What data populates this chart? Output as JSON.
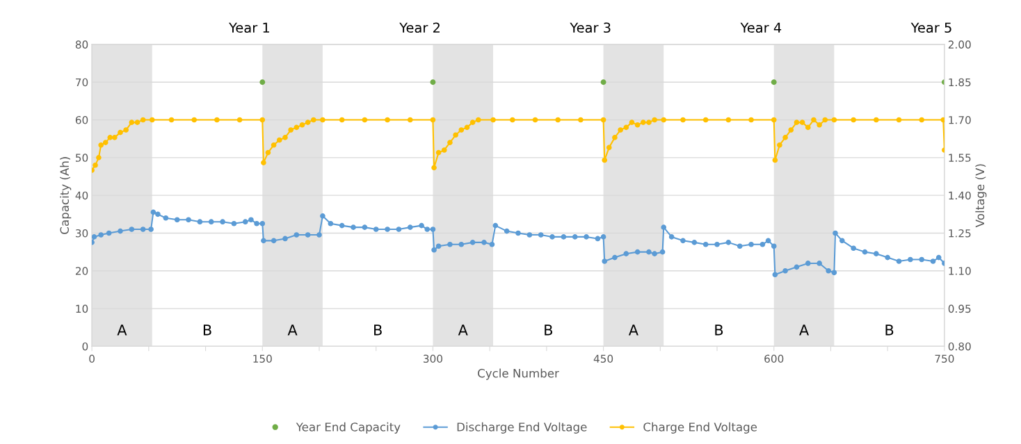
{
  "chart_data": {
    "type": "line",
    "xlabel": "Cycle Number",
    "ylabel": "Capacity (Ah)",
    "y2label": "Voltage (V)",
    "xlim": [
      0,
      750
    ],
    "xticks": [
      0,
      {
        "value": 50,
        "label": null
      },
      {
        "value": 100,
        "label": null
      },
      150,
      {
        "value": 200,
        "label": null
      },
      {
        "value": 250,
        "label": null
      },
      300,
      {
        "value": 350,
        "label": null
      },
      {
        "value": 400,
        "label": null
      },
      450,
      {
        "value": 500,
        "label": null
      },
      {
        "value": 550,
        "label": null
      },
      600,
      {
        "value": 650,
        "label": null
      },
      {
        "value": 700,
        "label": null
      },
      750
    ],
    "ylim": [
      0,
      80
    ],
    "yticks": [
      0,
      10,
      20,
      30,
      40,
      50,
      60,
      70,
      80
    ],
    "y2lim": [
      0.8,
      2.0
    ],
    "y2ticks": [
      {
        "value": 0.8,
        "label": "0.80"
      },
      {
        "value": 0.95,
        "label": "0.95"
      },
      {
        "value": 1.1,
        "label": "1.10"
      },
      {
        "value": 1.25,
        "label": "1.25"
      },
      {
        "value": 1.4,
        "label": "1.40"
      },
      {
        "value": 1.55,
        "label": "1.55"
      },
      {
        "value": 1.7,
        "label": "1.70"
      },
      {
        "value": 1.85,
        "label": "1.85"
      },
      {
        "value": 2.0,
        "label": "2.00"
      }
    ],
    "grid": "y",
    "legend": "bottom",
    "bands": [
      {
        "axis": "x",
        "from": 0,
        "to": 53,
        "label": "A",
        "color": "#e3e3e3"
      },
      {
        "axis": "x",
        "from": 150,
        "to": 203,
        "label": "A",
        "color": "#e3e3e3"
      },
      {
        "axis": "x",
        "from": 300,
        "to": 353,
        "label": "A",
        "color": "#e3e3e3"
      },
      {
        "axis": "x",
        "from": 450,
        "to": 503,
        "label": "A",
        "color": "#e3e3e3"
      },
      {
        "axis": "x",
        "from": 600,
        "to": 653,
        "label": "A",
        "color": "#e3e3e3"
      }
    ],
    "annotations": [
      "Year 1",
      "Year 2",
      "Year 3",
      "Year 4",
      "Year 5",
      "B",
      "B",
      "B",
      "B",
      "B"
    ],
    "series": [
      {
        "name": "Year End Capacity",
        "type": "scatter",
        "marker": "circle",
        "color": "#70ad47",
        "x": [
          150,
          300,
          450,
          600,
          750
        ],
        "values": [
          70,
          70,
          70,
          70,
          70
        ]
      },
      {
        "name": "Discharge End Voltage",
        "axis": "y2",
        "marker": "circle",
        "color": "#5b9bd5",
        "x": [
          0,
          2,
          8,
          15,
          25,
          35,
          45,
          52,
          54,
          58,
          65,
          75,
          85,
          95,
          105,
          115,
          125,
          135,
          140,
          145,
          150,
          151,
          160,
          170,
          180,
          190,
          200,
          203,
          210,
          220,
          230,
          240,
          250,
          260,
          270,
          280,
          290,
          295,
          300,
          301,
          305,
          315,
          325,
          335,
          345,
          352,
          355,
          365,
          375,
          385,
          395,
          405,
          415,
          425,
          435,
          445,
          450,
          451,
          460,
          470,
          480,
          490,
          495,
          502,
          503,
          510,
          520,
          530,
          540,
          550,
          560,
          570,
          580,
          590,
          595,
          600,
          601,
          610,
          620,
          630,
          640,
          648,
          653,
          654,
          660,
          670,
          680,
          690,
          700,
          710,
          720,
          730,
          740,
          745,
          750
        ],
        "values": [
          1.213,
          1.235,
          1.243,
          1.25,
          1.258,
          1.265,
          1.265,
          1.265,
          1.333,
          1.325,
          1.31,
          1.303,
          1.303,
          1.295,
          1.295,
          1.295,
          1.288,
          1.295,
          1.303,
          1.288,
          1.288,
          1.22,
          1.22,
          1.228,
          1.243,
          1.243,
          1.243,
          1.318,
          1.288,
          1.28,
          1.273,
          1.273,
          1.265,
          1.265,
          1.265,
          1.273,
          1.28,
          1.265,
          1.265,
          1.183,
          1.198,
          1.205,
          1.205,
          1.213,
          1.213,
          1.205,
          1.28,
          1.258,
          1.25,
          1.243,
          1.243,
          1.235,
          1.235,
          1.235,
          1.235,
          1.228,
          1.235,
          1.138,
          1.153,
          1.168,
          1.175,
          1.175,
          1.168,
          1.175,
          1.273,
          1.235,
          1.22,
          1.213,
          1.205,
          1.205,
          1.213,
          1.198,
          1.205,
          1.205,
          1.22,
          1.198,
          1.085,
          1.1,
          1.115,
          1.13,
          1.13,
          1.1,
          1.093,
          1.25,
          1.22,
          1.19,
          1.175,
          1.168,
          1.153,
          1.138,
          1.145,
          1.145,
          1.138,
          1.153,
          1.13
        ]
      },
      {
        "name": "Charge End Voltage",
        "axis": "y2",
        "marker": "circle",
        "color": "#ffc000",
        "x": [
          0,
          3,
          6,
          8,
          12,
          16,
          20,
          25,
          30,
          35,
          40,
          45,
          53,
          70,
          90,
          110,
          130,
          150,
          151,
          155,
          160,
          165,
          170,
          175,
          180,
          185,
          190,
          195,
          203,
          220,
          240,
          260,
          280,
          300,
          301,
          305,
          310,
          315,
          320,
          325,
          330,
          335,
          340,
          353,
          370,
          390,
          410,
          430,
          450,
          451,
          455,
          460,
          465,
          470,
          475,
          480,
          485,
          490,
          495,
          503,
          520,
          540,
          560,
          580,
          600,
          601,
          605,
          610,
          615,
          620,
          625,
          630,
          635,
          640,
          645,
          653,
          670,
          690,
          710,
          730,
          749,
          750
        ],
        "values": [
          1.5,
          1.52,
          1.55,
          1.6,
          1.61,
          1.63,
          1.63,
          1.65,
          1.66,
          1.69,
          1.69,
          1.7,
          1.7,
          1.7,
          1.7,
          1.7,
          1.7,
          1.7,
          1.53,
          1.57,
          1.6,
          1.62,
          1.63,
          1.66,
          1.67,
          1.68,
          1.69,
          1.7,
          1.7,
          1.7,
          1.7,
          1.7,
          1.7,
          1.7,
          1.51,
          1.57,
          1.58,
          1.61,
          1.64,
          1.66,
          1.67,
          1.69,
          1.7,
          1.7,
          1.7,
          1.7,
          1.7,
          1.7,
          1.7,
          1.54,
          1.59,
          1.63,
          1.66,
          1.67,
          1.69,
          1.68,
          1.69,
          1.69,
          1.7,
          1.7,
          1.7,
          1.7,
          1.7,
          1.7,
          1.7,
          1.54,
          1.6,
          1.63,
          1.66,
          1.69,
          1.69,
          1.67,
          1.7,
          1.68,
          1.7,
          1.7,
          1.7,
          1.7,
          1.7,
          1.7,
          1.7,
          1.58
        ]
      }
    ]
  }
}
